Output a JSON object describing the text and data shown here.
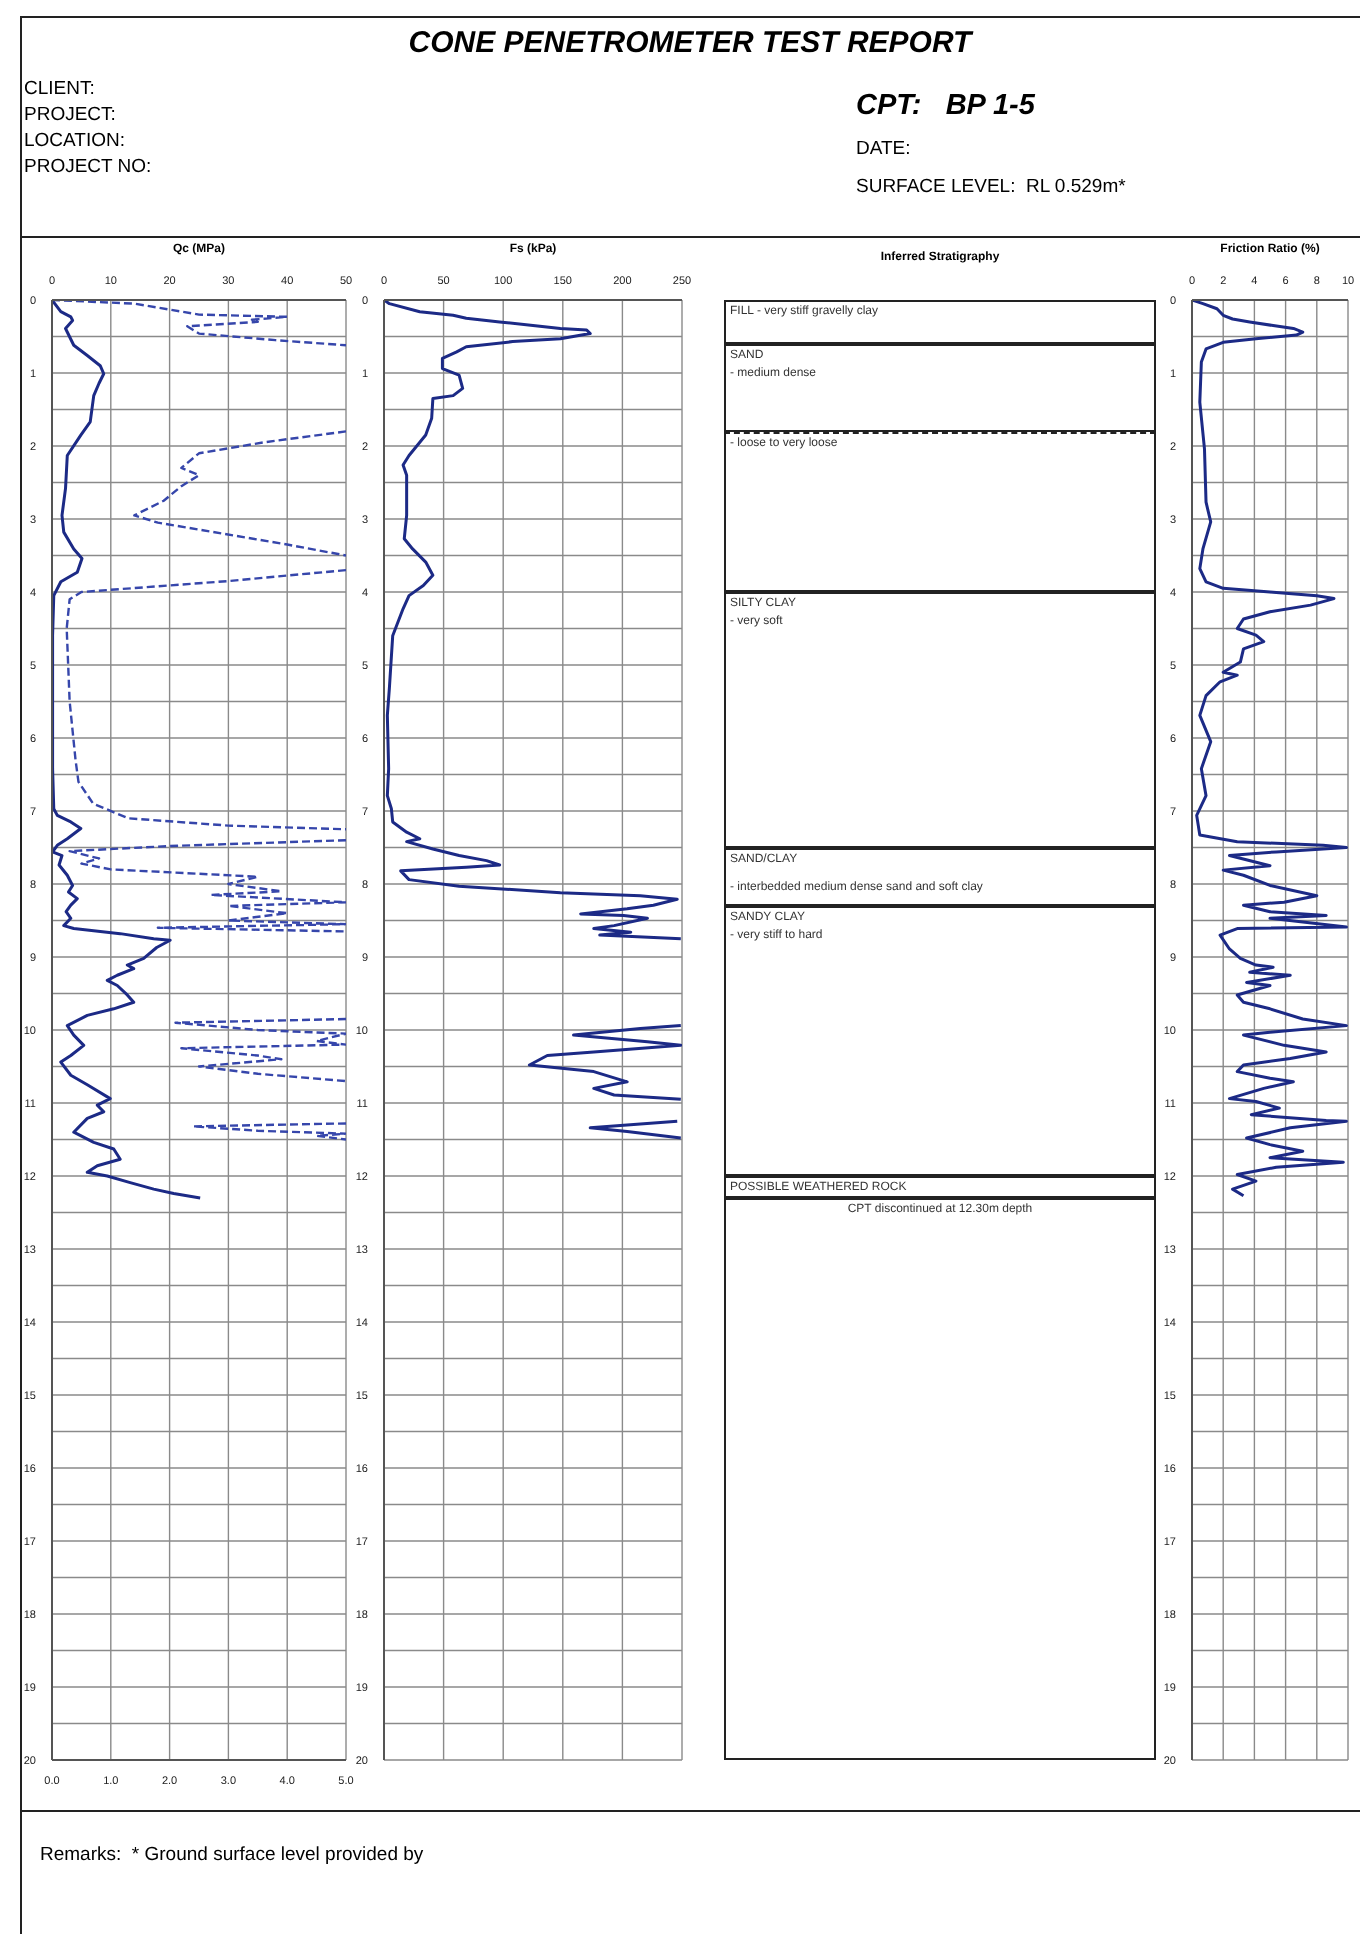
{
  "chart_data": [
    {
      "type": "other",
      "title": "CONE PENETROMETER TEST REPORT",
      "annotations": [
        "CLIENT:",
        "PROJECT:",
        "LOCATION:",
        "PROJECT NO:",
        "CPT:   BP 1-5",
        "DATE:",
        "SURFACE LEVEL:  RL 0.529m*",
        "Remarks:  * Ground surface level provided by"
      ]
    },
    {
      "type": "line",
      "x2label": "Qc (MPa)",
      "xlim": [
        0,
        5
      ],
      "xticks": [
        {
          "value": 0,
          "label": "0.0"
        },
        {
          "value": 1,
          "label": "1.0"
        },
        {
          "value": 2,
          "label": "2.0"
        },
        {
          "value": 3,
          "label": "3.0"
        },
        {
          "value": 4,
          "label": "4.0"
        },
        {
          "value": 5,
          "label": "5.0"
        }
      ],
      "x2lim": [
        0,
        50
      ],
      "x2ticks": [
        0,
        10,
        20,
        30,
        40,
        50
      ],
      "ylim": [
        20,
        0
      ],
      "yticks": [
        0,
        {
          "value": 0.5,
          "label": null
        },
        1,
        {
          "value": 1.5,
          "label": null
        },
        2,
        {
          "value": 2.5,
          "label": null
        },
        3,
        {
          "value": 3.5,
          "label": null
        },
        4,
        {
          "value": 4.5,
          "label": null
        },
        5,
        {
          "value": 5.5,
          "label": null
        },
        6,
        {
          "value": 6.5,
          "label": null
        },
        7,
        {
          "value": 7.5,
          "label": null
        },
        8,
        {
          "value": 8.5,
          "label": null
        },
        9,
        {
          "value": 9.5,
          "label": null
        },
        10,
        {
          "value": 10.5,
          "label": null
        },
        11,
        {
          "value": 11.5,
          "label": null
        },
        12,
        {
          "value": 12.5,
          "label": null
        },
        13,
        {
          "value": 13.5,
          "label": null
        },
        14,
        {
          "value": 14.5,
          "label": null
        },
        15,
        {
          "value": 15.5,
          "label": null
        },
        16,
        {
          "value": 16.5,
          "label": null
        },
        17,
        {
          "value": 17.5,
          "label": null
        },
        18,
        {
          "value": 18.5,
          "label": null
        },
        19,
        {
          "value": 19.5,
          "label": null
        },
        20
      ],
      "grid": true,
      "marker": "none",
      "series": [
        {
          "color": "#1c2a86",
          "axis": "x2",
          "line_style": "solid",
          "x": [
            0,
            1.5,
            3.2,
            3.5,
            2.3,
            3.7,
            6,
            8.2,
            8.8,
            8,
            7.1,
            6.5,
            4.9,
            2.6,
            2.3,
            1.7,
            2.0,
            3.7,
            5.1,
            4.3,
            1.5,
            0.3,
            0.1,
            0.1,
            0.1,
            0.3,
            0.9,
            3.2,
            4.9,
            2.6,
            0.9,
            0.1,
            1.7,
            1.2,
            2.6,
            3.5,
            2.8,
            4.3,
            3.2,
            2.4,
            3.2,
            2.0,
            3.7,
            11.6,
            17.3,
            20.1,
            17.8,
            15.6,
            12.8,
            13.9,
            11.1,
            9.4,
            11.1,
            12.8,
            13.9,
            10.5,
            6.0,
            2.6,
            3.7,
            5.4,
            3.2,
            1.5,
            3.2,
            6.0,
            9.9,
            7.7,
            8.8,
            6.0,
            3.7,
            7.1,
            10.5,
            11.6,
            7.7,
            6.0,
            9.4,
            13.3,
            17.3,
            20.7,
            25.2
          ],
          "values": [
            0,
            0.16,
            0.23,
            0.28,
            0.39,
            0.62,
            0.76,
            0.9,
            1.01,
            1.14,
            1.31,
            1.67,
            1.85,
            2.13,
            2.58,
            2.95,
            3.18,
            3.41,
            3.54,
            3.73,
            3.86,
            4.05,
            4.6,
            5.5,
            6.42,
            6.97,
            7.06,
            7.15,
            7.24,
            7.38,
            7.47,
            7.56,
            7.61,
            7.74,
            7.88,
            8.02,
            8.11,
            8.2,
            8.29,
            8.38,
            8.47,
            8.57,
            8.61,
            8.68,
            8.75,
            8.77,
            8.87,
            9.02,
            9.11,
            9.16,
            9.25,
            9.32,
            9.39,
            9.52,
            9.62,
            9.71,
            9.8,
            9.94,
            10.07,
            10.21,
            10.35,
            10.44,
            10.62,
            10.75,
            10.94,
            11.03,
            11.12,
            11.21,
            11.4,
            11.54,
            11.63,
            11.77,
            11.86,
            11.95,
            12.0,
            12.09,
            12.18,
            12.24,
            12.3
          ]
        },
        {
          "color": "#3646ab",
          "line_style": "dashed",
          "x": [
            0,
            1.4,
            2.5,
            4.0,
            3.4,
            3.5,
            2.3,
            2.5,
            3.8,
            5.0,
            null,
            5.0,
            3.6,
            2.5,
            2.2,
            2.5,
            2.2,
            1.9,
            1.4,
            1.8,
            2.9,
            4.0,
            5.0,
            null,
            5.0,
            3.0,
            0.5,
            0.3,
            0.25,
            0.3,
            0.4,
            0.45,
            0.7,
            1.3,
            3.0,
            5.0,
            null,
            5.0,
            2.0,
            0.3,
            0.8,
            0.5,
            1.0,
            3.5,
            3.0,
            3.9,
            2.7,
            5.0,
            3.0,
            4.0,
            3.0,
            5.0,
            1.8,
            5.0,
            null,
            5.0,
            2.1,
            3.5,
            5.0,
            4.5,
            5.0,
            2.2,
            3.5,
            3.9,
            2.5,
            3.5,
            5.0,
            null,
            5.0,
            2.4,
            3.5,
            5.0,
            4.5,
            5.0
          ],
          "values": [
            0,
            0.05,
            0.2,
            0.23,
            0.27,
            0.3,
            0.36,
            0.46,
            0.55,
            0.62,
            null,
            1.8,
            1.95,
            2.1,
            2.3,
            2.4,
            2.55,
            2.75,
            2.95,
            3.05,
            3.2,
            3.35,
            3.5,
            null,
            3.7,
            3.85,
            4.0,
            4.1,
            4.5,
            5.5,
            6.3,
            6.6,
            6.9,
            7.1,
            7.2,
            7.25,
            null,
            7.4,
            7.48,
            7.55,
            7.65,
            7.72,
            7.8,
            7.9,
            8.0,
            8.1,
            8.15,
            8.25,
            8.3,
            8.4,
            8.5,
            8.55,
            8.6,
            8.65,
            null,
            9.85,
            9.9,
            10.0,
            10.05,
            10.15,
            10.2,
            10.25,
            10.35,
            10.4,
            10.5,
            10.6,
            10.7,
            null,
            11.28,
            11.32,
            11.38,
            11.42,
            11.45,
            11.5
          ]
        }
      ]
    },
    {
      "type": "other",
      "title": "Inferred Stratigraphy",
      "annotations": [
        "FILL - very stiff gravelly clay",
        "SAND",
        "- medium dense",
        "- loose to very loose",
        "SILTY CLAY",
        "- very soft",
        "SAND/CLAY",
        "- interbedded medium dense sand and soft clay",
        "SANDY CLAY",
        "- very stiff to hard",
        "POSSIBLE WEATHERED ROCK",
        "CPT discontinued at 12.30m depth"
      ]
    },
    {
      "type": "line",
      "xlabel": "Fs (kPa)",
      "xlim": [
        0,
        250
      ],
      "xticks": [
        0,
        50,
        100,
        150,
        200,
        250
      ],
      "ylim": [
        20,
        0
      ],
      "yticks": [
        0,
        {
          "value": 0.5,
          "label": null
        },
        1,
        {
          "value": 1.5,
          "label": null
        },
        2,
        {
          "value": 2.5,
          "label": null
        },
        3,
        {
          "value": 3.5,
          "label": null
        },
        4,
        {
          "value": 4.5,
          "label": null
        },
        5,
        {
          "value": 5.5,
          "label": null
        },
        6,
        {
          "value": 6.5,
          "label": null
        },
        7,
        {
          "value": 7.5,
          "label": null
        },
        8,
        {
          "value": 8.5,
          "label": null
        },
        9,
        {
          "value": 9.5,
          "label": null
        },
        10,
        {
          "value": 10.5,
          "label": null
        },
        11,
        {
          "value": 11.5,
          "label": null
        },
        12,
        {
          "value": 12.5,
          "label": null
        },
        13,
        {
          "value": 13.5,
          "label": null
        },
        14,
        {
          "value": 14.5,
          "label": null
        },
        15,
        {
          "value": 15.5,
          "label": null
        },
        16,
        {
          "value": 16.5,
          "label": null
        },
        17,
        {
          "value": 17.5,
          "label": null
        },
        18,
        {
          "value": 18.5,
          "label": null
        },
        19,
        {
          "value": 19.5,
          "label": null
        },
        20
      ],
      "grid": true,
      "marker": "none",
      "series": [
        {
          "color": "#1c2a86",
          "line_style": "solid",
          "x": [
            0,
            4.5,
            30,
            58,
            69,
            97,
            125,
            148,
            170,
            173,
            148,
            108,
            69,
            61,
            49,
            49,
            63,
            66,
            58,
            41,
            40,
            35,
            21,
            16,
            19,
            19,
            17,
            24,
            35,
            41,
            33,
            21,
            16,
            7.3,
            4.5,
            2.8,
            3.9,
            2.8,
            6.2,
            7.3,
            19,
            30,
            19,
            41,
            63,
            86,
            97,
            69,
            14,
            21,
            63,
            148,
            215,
            246,
            226,
            204,
            165,
            201,
            221,
            193,
            176,
            207,
            181,
            249,
            null,
            249,
            215,
            159,
            221,
            249,
            176,
            137,
            122,
            176,
            204,
            176,
            193,
            249,
            null,
            246,
            173,
            204,
            249
          ],
          "values": [
            0,
            0.05,
            0.16,
            0.21,
            0.25,
            0.3,
            0.35,
            0.39,
            0.41,
            0.46,
            0.53,
            0.57,
            0.64,
            0.71,
            0.8,
            0.94,
            1.03,
            1.21,
            1.31,
            1.35,
            1.62,
            1.85,
            2.13,
            2.26,
            2.4,
            2.95,
            3.27,
            3.41,
            3.59,
            3.77,
            3.91,
            4.05,
            4.23,
            4.6,
            5.32,
            5.69,
            6.42,
            6.79,
            6.97,
            7.15,
            7.29,
            7.38,
            7.42,
            7.52,
            7.61,
            7.68,
            7.74,
            7.77,
            7.82,
            7.94,
            8.03,
            8.12,
            8.16,
            8.21,
            8.29,
            8.34,
            8.41,
            8.43,
            8.47,
            8.57,
            8.61,
            8.66,
            8.7,
            8.75,
            null,
            9.94,
            9.98,
            10.07,
            10.16,
            10.21,
            10.3,
            10.35,
            10.48,
            10.57,
            10.71,
            10.8,
            10.89,
            10.95,
            null,
            11.25,
            11.34,
            11.39,
            11.48
          ]
        }
      ]
    },
    {
      "type": "line",
      "xlabel": "Friction Ratio (%)",
      "xlim": [
        0,
        10
      ],
      "xticks": [
        0,
        2,
        4,
        6,
        8,
        10
      ],
      "ylim": [
        20,
        0
      ],
      "yticks": [
        0,
        {
          "value": 0.5,
          "label": null
        },
        1,
        {
          "value": 1.5,
          "label": null
        },
        2,
        {
          "value": 2.5,
          "label": null
        },
        3,
        {
          "value": 3.5,
          "label": null
        },
        4,
        {
          "value": 4.5,
          "label": null
        },
        5,
        {
          "value": 5.5,
          "label": null
        },
        6,
        {
          "value": 6.5,
          "label": null
        },
        7,
        {
          "value": 7.5,
          "label": null
        },
        8,
        {
          "value": 8.5,
          "label": null
        },
        9,
        {
          "value": 9.5,
          "label": null
        },
        10,
        {
          "value": 10.5,
          "label": null
        },
        11,
        {
          "value": 11.5,
          "label": null
        },
        12,
        {
          "value": 12.5,
          "label": null
        },
        13,
        {
          "value": 13.5,
          "label": null
        },
        14,
        {
          "value": 14.5,
          "label": null
        },
        15,
        {
          "value": 15.5,
          "label": null
        },
        16,
        {
          "value": 16.5,
          "label": null
        },
        17,
        {
          "value": 17.5,
          "label": null
        },
        18,
        {
          "value": 18.5,
          "label": null
        },
        19,
        {
          "value": 19.5,
          "label": null
        },
        20
      ],
      "grid": true,
      "marker": "none",
      "series": [
        {
          "color": "#1c2a86",
          "line_style": "solid",
          "x": [
            0,
            0.7,
            1.6,
            2.0,
            2.6,
            3.7,
            5.2,
            6.5,
            7.1,
            6.7,
            4.1,
            2.0,
            0.9,
            0.6,
            0.5,
            0.8,
            0.9,
            1.2,
            0.7,
            0.5,
            0.9,
            2.0,
            5.0,
            8.0,
            9.1,
            7.6,
            5.0,
            3.3,
            2.9,
            4.1,
            4.6,
            3.3,
            3.1,
            2.0,
            2.9,
            1.8,
            0.9,
            0.5,
            1.2,
            0.6,
            0.9,
            0.3,
            0.5,
            2.9,
            8.4,
            9.9,
            5.4,
            2.4,
            5.0,
            2.0,
            3.3,
            5.0,
            8.0,
            5.9,
            3.3,
            5.0,
            8.6,
            5.0,
            9.9,
            2.9,
            1.8,
            2.4,
            3.1,
            4.1,
            5.2,
            3.7,
            6.3,
            3.5,
            5.0,
            2.9,
            3.3,
            5.0,
            7.1,
            9.9,
            5.0,
            3.3,
            5.9,
            8.6,
            6.3,
            3.3,
            2.9,
            5.0,
            6.5,
            4.6,
            2.4,
            4.1,
            5.6,
            3.8,
            8.6,
            9.9,
            6.3,
            3.5,
            5.0,
            7.1,
            5.0,
            9.7,
            5.4,
            2.9,
            4.1,
            2.6,
            3.3
          ],
          "values": [
            0,
            0.05,
            0.12,
            0.21,
            0.26,
            0.3,
            0.35,
            0.39,
            0.44,
            0.48,
            0.53,
            0.58,
            0.67,
            0.85,
            1.4,
            2.04,
            2.77,
            3.04,
            3.41,
            3.68,
            3.86,
            3.95,
            4.0,
            4.05,
            4.09,
            4.18,
            4.27,
            4.37,
            4.5,
            4.59,
            4.68,
            4.78,
            4.96,
            5.1,
            5.14,
            5.23,
            5.42,
            5.69,
            6.05,
            6.42,
            6.79,
            7.06,
            7.33,
            7.42,
            7.47,
            7.5,
            7.56,
            7.61,
            7.75,
            7.81,
            7.88,
            8.02,
            8.16,
            8.25,
            8.29,
            8.38,
            8.43,
            8.47,
            8.59,
            8.61,
            8.7,
            8.89,
            9.02,
            9.11,
            9.14,
            9.21,
            9.25,
            9.35,
            9.39,
            9.52,
            9.62,
            9.71,
            9.85,
            9.94,
            10.03,
            10.07,
            10.21,
            10.3,
            10.39,
            10.48,
            10.57,
            10.66,
            10.71,
            10.8,
            10.94,
            10.98,
            11.07,
            11.16,
            11.24,
            11.25,
            11.34,
            11.48,
            11.57,
            11.66,
            11.75,
            11.81,
            11.88,
            11.98,
            12.07,
            12.18,
            12.27
          ]
        }
      ]
    }
  ]
}
